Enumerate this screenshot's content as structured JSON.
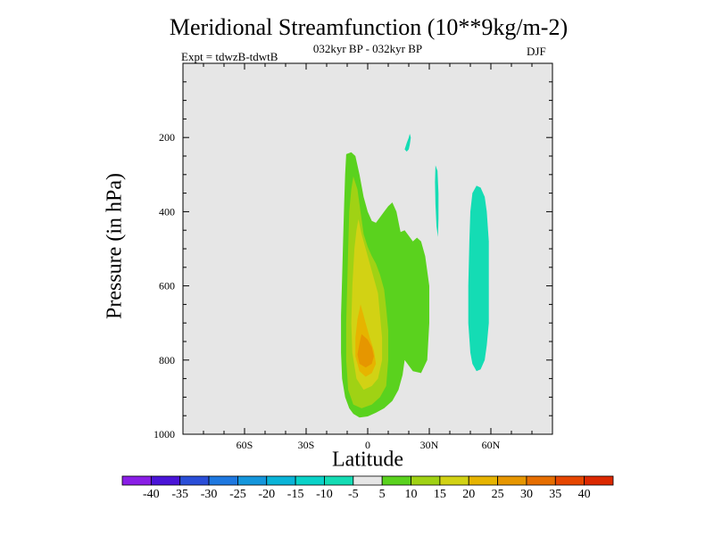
{
  "chart_data": {
    "type": "contour",
    "title": "Meridional Streamfunction (10**9kg/m-2)",
    "subtitle": "032kyr BP - 032kyr BP",
    "experiment": "Expt = tdwzB-tdwtB",
    "season": "DJF",
    "xlabel": "Latitude",
    "ylabel": "Pressure (in hPa)",
    "xlim": [
      -90,
      90
    ],
    "ylim": [
      1000,
      0
    ],
    "y_inverted": true,
    "x_ticks": [
      {
        "value": -60,
        "label": "60S"
      },
      {
        "value": -30,
        "label": "30S"
      },
      {
        "value": 0,
        "label": "0"
      },
      {
        "value": 30,
        "label": "30N"
      },
      {
        "value": 60,
        "label": "60N"
      }
    ],
    "y_ticks": [
      {
        "value": 200,
        "label": "200"
      },
      {
        "value": 400,
        "label": "400"
      },
      {
        "value": 600,
        "label": "600"
      },
      {
        "value": 800,
        "label": "800"
      },
      {
        "value": 1000,
        "label": "1000"
      }
    ],
    "background_color": "#e6e6e6",
    "colorbar": {
      "labels": [
        "-40",
        "-35",
        "-30",
        "-25",
        "-20",
        "-15",
        "-10",
        "-5",
        "5",
        "10",
        "15",
        "20",
        "25",
        "30",
        "35",
        "40"
      ],
      "colors": [
        "#8a1ee6",
        "#4a14d8",
        "#2a4ed8",
        "#1e78e0",
        "#1496dc",
        "#0ab4d8",
        "#0ad2c8",
        "#14dcb4",
        "#e6e6e6",
        "#5ad21e",
        "#a0d214",
        "#d2d214",
        "#e6b400",
        "#e69600",
        "#e66e00",
        "#e64600",
        "#dc2800"
      ]
    },
    "regions": [
      {
        "range": "5 to 10",
        "color": "#5ad21e",
        "points": [
          [
            -10.5,
            245
          ],
          [
            -8,
            240
          ],
          [
            -6,
            250
          ],
          [
            -4,
            300
          ],
          [
            -2,
            360
          ],
          [
            0,
            400
          ],
          [
            2,
            425
          ],
          [
            4,
            430
          ],
          [
            6,
            415
          ],
          [
            8,
            400
          ],
          [
            10,
            385
          ],
          [
            12,
            375
          ],
          [
            14,
            400
          ],
          [
            16,
            455
          ],
          [
            18,
            450
          ],
          [
            20,
            465
          ],
          [
            22,
            480
          ],
          [
            24,
            470
          ],
          [
            26,
            480
          ],
          [
            28,
            520
          ],
          [
            30,
            600
          ],
          [
            30,
            700
          ],
          [
            29,
            800
          ],
          [
            26,
            835
          ],
          [
            22,
            830
          ],
          [
            20,
            815
          ],
          [
            18,
            800
          ],
          [
            17,
            840
          ],
          [
            15,
            880
          ],
          [
            12,
            910
          ],
          [
            8,
            930
          ],
          [
            4,
            942
          ],
          [
            0,
            952
          ],
          [
            -4,
            955
          ],
          [
            -7,
            945
          ],
          [
            -9,
            930
          ],
          [
            -11,
            900
          ],
          [
            -12.5,
            850
          ],
          [
            -13,
            780
          ],
          [
            -13,
            680
          ],
          [
            -12.5,
            580
          ],
          [
            -12,
            480
          ],
          [
            -11.5,
            380
          ],
          [
            -11,
            300
          ]
        ]
      },
      {
        "range": "10 to 15",
        "color": "#a0d214",
        "points": [
          [
            -7,
            305
          ],
          [
            -5,
            340
          ],
          [
            -4,
            380
          ],
          [
            -3,
            420
          ],
          [
            -2,
            460
          ],
          [
            0,
            495
          ],
          [
            2,
            520
          ],
          [
            4,
            540
          ],
          [
            6,
            570
          ],
          [
            8,
            610
          ],
          [
            9,
            660
          ],
          [
            10,
            720
          ],
          [
            10,
            800
          ],
          [
            9,
            870
          ],
          [
            6,
            900
          ],
          [
            2,
            920
          ],
          [
            -3,
            930
          ],
          [
            -7,
            920
          ],
          [
            -9.5,
            880
          ],
          [
            -10.5,
            800
          ],
          [
            -10.5,
            700
          ],
          [
            -10,
            600
          ],
          [
            -9.5,
            500
          ],
          [
            -9,
            400
          ],
          [
            -8,
            340
          ]
        ]
      },
      {
        "range": "15 to 20",
        "color": "#d2d214",
        "points": [
          [
            -4.5,
            420
          ],
          [
            -3,
            460
          ],
          [
            -1,
            500
          ],
          [
            1,
            540
          ],
          [
            3,
            580
          ],
          [
            5,
            620
          ],
          [
            6,
            680
          ],
          [
            7,
            740
          ],
          [
            7,
            800
          ],
          [
            5,
            850
          ],
          [
            2,
            870
          ],
          [
            -2,
            880
          ],
          [
            -5.5,
            850
          ],
          [
            -7.5,
            780
          ],
          [
            -8,
            700
          ],
          [
            -7.5,
            600
          ],
          [
            -6.5,
            500
          ],
          [
            -5.5,
            450
          ]
        ]
      },
      {
        "range": "20 to 25",
        "color": "#e6b400",
        "points": [
          [
            -3.5,
            650
          ],
          [
            -1,
            700
          ],
          [
            1,
            740
          ],
          [
            3,
            775
          ],
          [
            4,
            810
          ],
          [
            2,
            835
          ],
          [
            -1,
            845
          ],
          [
            -4,
            830
          ],
          [
            -6,
            790
          ],
          [
            -6,
            740
          ],
          [
            -5,
            690
          ]
        ]
      },
      {
        "range": "25 to 30",
        "color": "#e69600",
        "points": [
          [
            -3,
            730
          ],
          [
            0,
            745
          ],
          [
            2,
            765
          ],
          [
            3,
            790
          ],
          [
            2,
            810
          ],
          [
            -1,
            820
          ],
          [
            -4,
            810
          ],
          [
            -5,
            785
          ],
          [
            -4,
            755
          ]
        ]
      },
      {
        "range": "-10 to -5",
        "color": "#14dcb4",
        "points": [
          [
            53,
            330
          ],
          [
            55,
            335
          ],
          [
            57,
            360
          ],
          [
            58,
            400
          ],
          [
            59,
            480
          ],
          [
            59,
            600
          ],
          [
            59,
            700
          ],
          [
            58,
            760
          ],
          [
            57,
            800
          ],
          [
            55,
            825
          ],
          [
            53,
            830
          ],
          [
            51,
            810
          ],
          [
            50,
            780
          ],
          [
            49,
            700
          ],
          [
            49,
            600
          ],
          [
            49.5,
            480
          ],
          [
            50,
            400
          ],
          [
            51,
            350
          ]
        ]
      },
      {
        "range": "-10 to -5",
        "color": "#14dcb4",
        "points": [
          [
            33,
            275
          ],
          [
            34,
            290
          ],
          [
            34.5,
            350
          ],
          [
            34.5,
            420
          ],
          [
            34.2,
            468
          ],
          [
            33.5,
            440
          ],
          [
            33,
            380
          ],
          [
            32.8,
            320
          ]
        ]
      },
      {
        "range": "-10 to -5",
        "color": "#14dcb4",
        "points": [
          [
            18,
            232
          ],
          [
            19,
            215
          ],
          [
            20,
            200
          ],
          [
            20.5,
            190
          ],
          [
            21,
            200
          ],
          [
            20.5,
            220
          ],
          [
            20,
            232
          ],
          [
            19,
            238
          ]
        ]
      }
    ]
  }
}
